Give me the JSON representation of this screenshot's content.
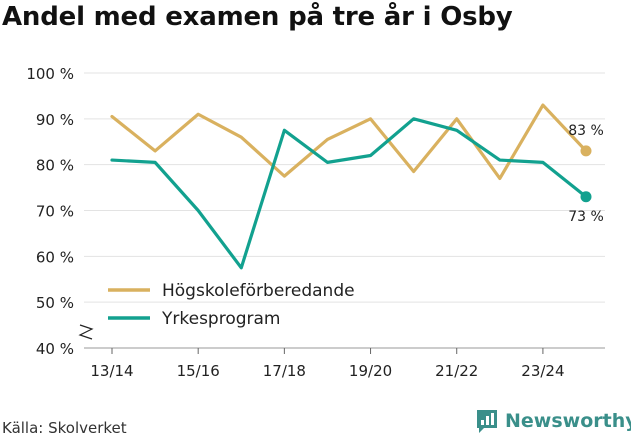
{
  "title": "Andel med examen på tre år i Osby",
  "source": "Källa: Skolverket",
  "brand": {
    "name": "Newsworthy",
    "icon": "newsworthy-logo-icon",
    "color": "#3a8f8a"
  },
  "chart_data": {
    "type": "line",
    "x": [
      "13/14",
      "14/15",
      "15/16",
      "16/17",
      "17/18",
      "18/19",
      "19/20",
      "20/21",
      "21/22",
      "22/23",
      "23/24",
      "24/25"
    ],
    "x_tick_labels": [
      "13/14",
      "15/16",
      "17/18",
      "19/20",
      "21/22",
      "23/24"
    ],
    "ylim": [
      40,
      100
    ],
    "y_ticks": [
      40,
      50,
      60,
      70,
      80,
      90,
      100
    ],
    "y_tick_labels": [
      "40 %",
      "50 %",
      "60 %",
      "70 %",
      "80 %",
      "90 %",
      "100 %"
    ],
    "y_axis_break": true,
    "grid": true,
    "legend_position": "bottom-left",
    "series": [
      {
        "name": "Högskoleförberedande",
        "color": "#d9b15f",
        "values": [
          90.5,
          83,
          91,
          86,
          77.5,
          85.5,
          90,
          78.5,
          90,
          77,
          93,
          83
        ],
        "end_label": "83 %"
      },
      {
        "name": "Yrkesprogram",
        "color": "#12a18f",
        "values": [
          81,
          80.5,
          70,
          57.5,
          87.5,
          80.5,
          82,
          90,
          87.5,
          81,
          80.5,
          73
        ],
        "end_label": "73 %"
      }
    ]
  }
}
